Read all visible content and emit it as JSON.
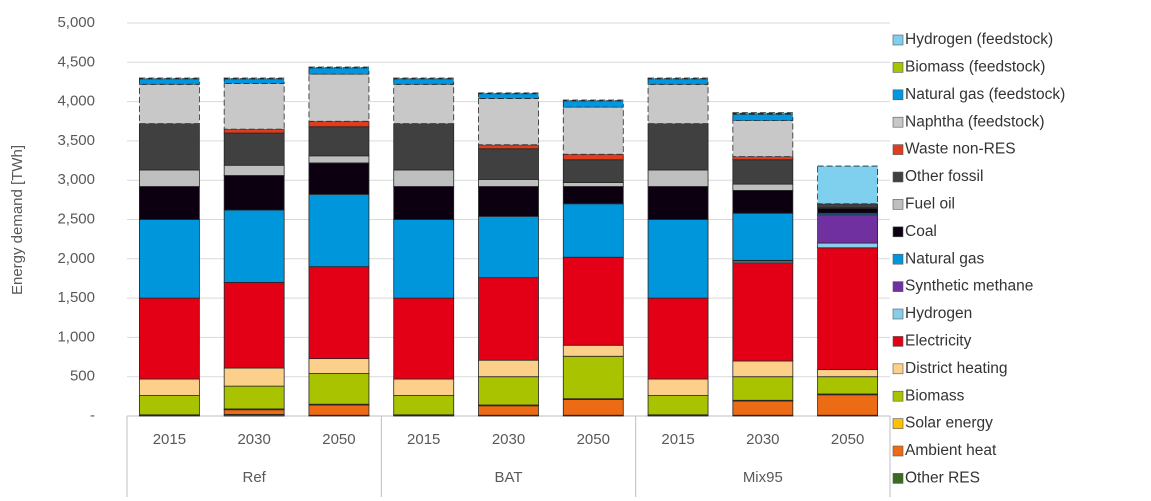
{
  "chart_data": {
    "type": "bar",
    "stacked": true,
    "y_label": "Energy demand [TWh]",
    "categories": [
      "2015",
      "2030",
      "2050",
      "2015",
      "2030",
      "2050",
      "2015",
      "2030",
      "2050"
    ],
    "groups": [
      "Ref",
      "BAT",
      "Mix95"
    ],
    "ylim": [
      0,
      5000
    ],
    "yticks": [
      {
        "value": 0,
        "label": "-"
      },
      {
        "value": 500,
        "label": "500"
      },
      {
        "value": 1000,
        "label": "1,000"
      },
      {
        "value": 1500,
        "label": "1,500"
      },
      {
        "value": 2000,
        "label": "2,000"
      },
      {
        "value": 2500,
        "label": "2,500"
      },
      {
        "value": 3000,
        "label": "3,000"
      },
      {
        "value": 3500,
        "label": "3,500"
      },
      {
        "value": 4000,
        "label": "4,000"
      },
      {
        "value": 4500,
        "label": "4,500"
      },
      {
        "value": 5000,
        "label": "5,000"
      }
    ],
    "grid": true,
    "legend": "right",
    "series": [
      {
        "name": "Other RES",
        "color": "#3a6b1e",
        "values": [
          10,
          20,
          10,
          10,
          10,
          10,
          10,
          10,
          10
        ]
      },
      {
        "name": "Ambient heat",
        "color": "#ec6b14",
        "values": [
          0,
          60,
          130,
          0,
          120,
          200,
          0,
          180,
          260
        ]
      },
      {
        "name": "Solar energy",
        "color": "#ffc000",
        "values": [
          5,
          10,
          10,
          5,
          10,
          10,
          5,
          10,
          10
        ]
      },
      {
        "name": "Biomass",
        "color": "#a9c300",
        "values": [
          245,
          290,
          390,
          245,
          360,
          540,
          245,
          300,
          220
        ]
      },
      {
        "name": "District heating",
        "color": "#fcd08a",
        "values": [
          210,
          230,
          190,
          210,
          210,
          140,
          210,
          200,
          90
        ]
      },
      {
        "name": "Electricity",
        "color": "#e30016",
        "values": [
          1030,
          1090,
          1170,
          1030,
          1050,
          1120,
          1030,
          1250,
          1550
        ]
      },
      {
        "name": "Hydrogen",
        "color": "#87ceeb",
        "values": [
          0,
          0,
          0,
          0,
          0,
          0,
          0,
          20,
          60
        ]
      },
      {
        "name": "Synthetic methane",
        "color": "#7030a0",
        "values": [
          0,
          0,
          0,
          0,
          0,
          0,
          0,
          10,
          360
        ]
      },
      {
        "name": "Natural gas",
        "color": "#0096dc",
        "values": [
          1000,
          920,
          920,
          1000,
          780,
          680,
          1000,
          600,
          20
        ]
      },
      {
        "name": "Coal",
        "color": "#0c0010",
        "values": [
          420,
          440,
          400,
          420,
          380,
          220,
          420,
          290,
          60
        ]
      },
      {
        "name": "Fuel oil",
        "color": "#bfbfbf",
        "values": [
          210,
          130,
          90,
          210,
          90,
          50,
          210,
          80,
          10
        ]
      },
      {
        "name": "Other fossil",
        "color": "#404040",
        "values": [
          590,
          410,
          370,
          590,
          390,
          290,
          590,
          310,
          50
        ]
      },
      {
        "name": "Waste non-RES",
        "color": "#e03c1e",
        "values": [
          0,
          50,
          70,
          0,
          50,
          70,
          0,
          40,
          0
        ]
      },
      {
        "name": "Naphtha (feedstock)",
        "color": "#c8c8c8",
        "dashed": true,
        "values": [
          500,
          580,
          600,
          500,
          590,
          600,
          500,
          460,
          0
        ]
      },
      {
        "name": "Natural gas (feedstock)",
        "color": "#0096e0",
        "dashed": true,
        "values": [
          70,
          60,
          80,
          70,
          60,
          80,
          70,
          80,
          0
        ]
      },
      {
        "name": "Biomass (feedstock)",
        "color": "#a6c400",
        "dashed": true,
        "values": [
          0,
          0,
          0,
          0,
          0,
          0,
          0,
          10,
          0
        ]
      },
      {
        "name": "Hydrogen (feedstock)",
        "color": "#7fd0ee",
        "dashed": true,
        "values": [
          10,
          10,
          10,
          10,
          10,
          10,
          10,
          10,
          480
        ]
      }
    ]
  }
}
